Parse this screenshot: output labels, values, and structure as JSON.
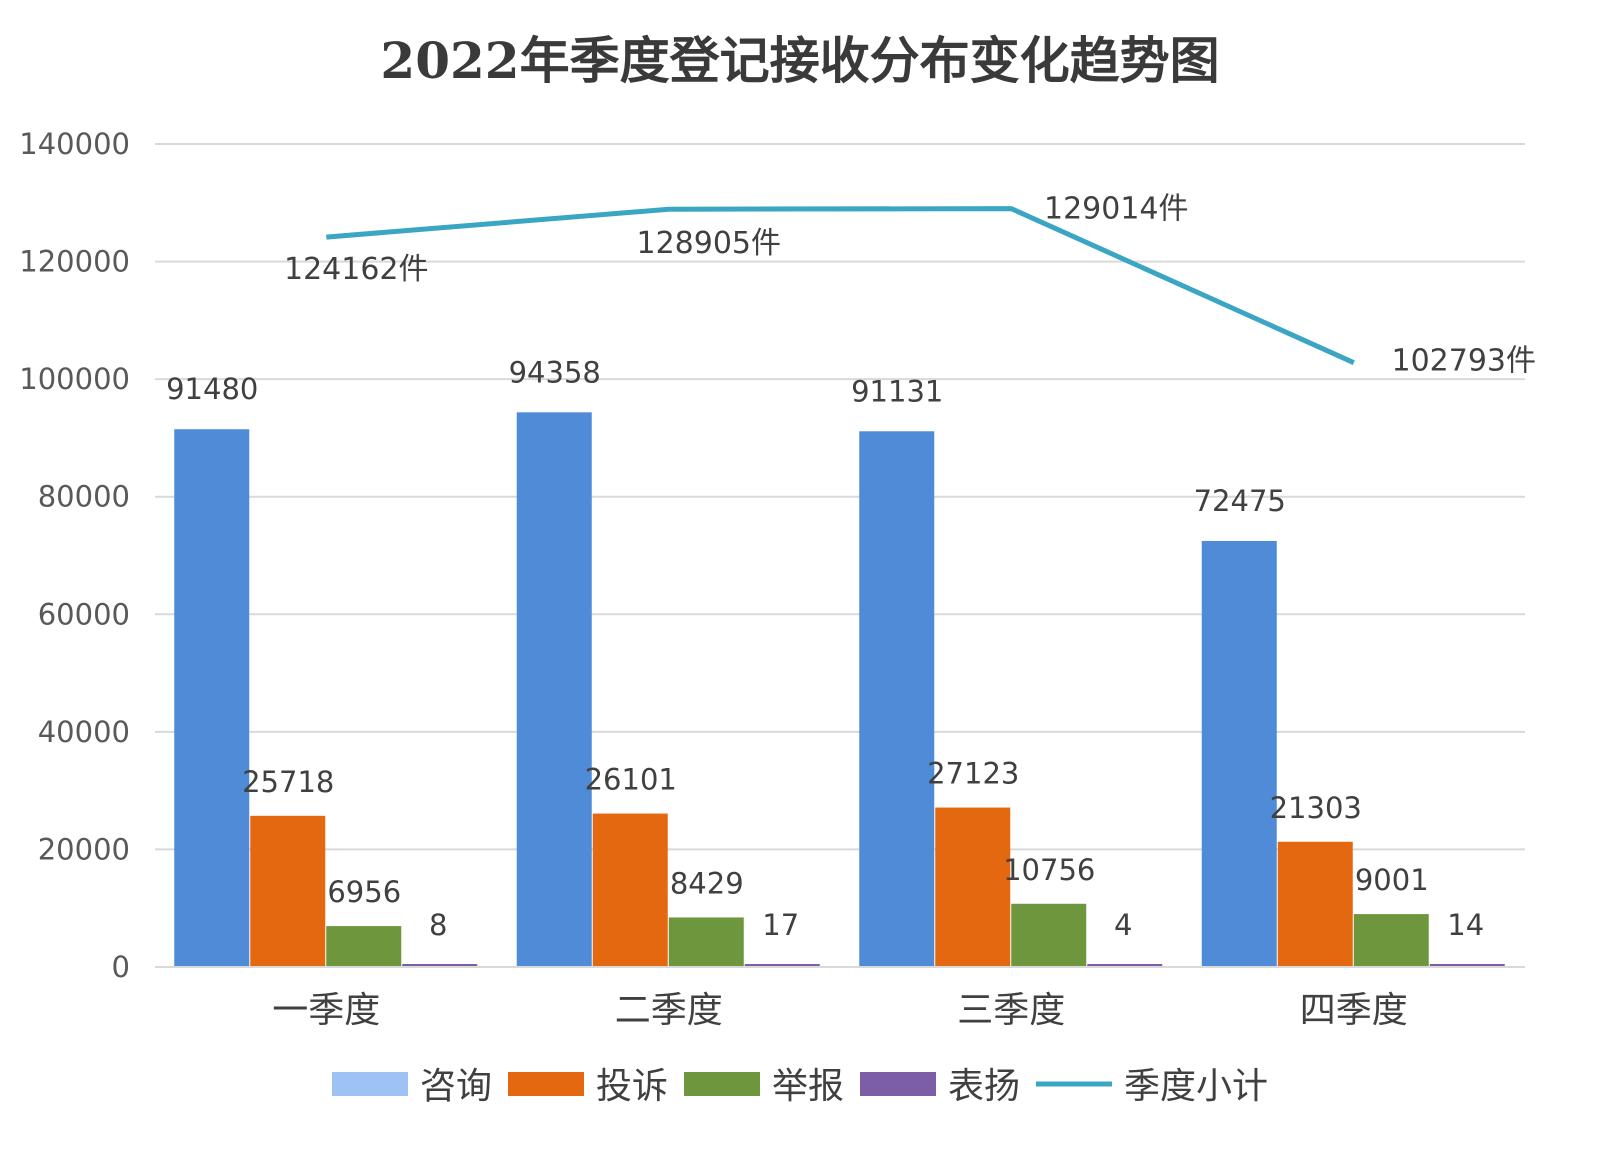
{
  "chart_data": {
    "type": "bar",
    "title": "2022年季度登记接收分布变化趋势图",
    "categories": [
      "一季度",
      "二季度",
      "三季度",
      "四季度"
    ],
    "ylim": [
      0,
      140000
    ],
    "yticks": [
      0,
      20000,
      40000,
      60000,
      80000,
      100000,
      120000,
      140000
    ],
    "grid": true,
    "legend_position": "bottom",
    "series": [
      {
        "name": "咨询",
        "type": "bar",
        "color": "#4f8bd6",
        "legend_color": "#9dc3f5",
        "values": [
          91480,
          94358,
          91131,
          72475
        ],
        "labels": [
          "91480",
          "94358",
          "91131",
          "72475"
        ]
      },
      {
        "name": "投诉",
        "type": "bar",
        "color": "#e3680f",
        "values": [
          25718,
          26101,
          27123,
          21303
        ],
        "labels": [
          "25718",
          "26101",
          "27123",
          "21303"
        ]
      },
      {
        "name": "举报",
        "type": "bar",
        "color": "#6e963c",
        "values": [
          6956,
          8429,
          10756,
          9001
        ],
        "labels": [
          "6956",
          "8429",
          "10756",
          "9001"
        ]
      },
      {
        "name": "表扬",
        "type": "bar",
        "color": "#7c5ea6",
        "values": [
          8,
          17,
          4,
          14
        ],
        "labels": [
          "8",
          "17",
          "4",
          "14"
        ]
      },
      {
        "name": "季度小计",
        "type": "line",
        "color": "#3ba6c4",
        "values": [
          124162,
          128905,
          129014,
          102793
        ],
        "labels": [
          "124162件",
          "128905件",
          "129014件",
          "102793件"
        ]
      }
    ]
  }
}
